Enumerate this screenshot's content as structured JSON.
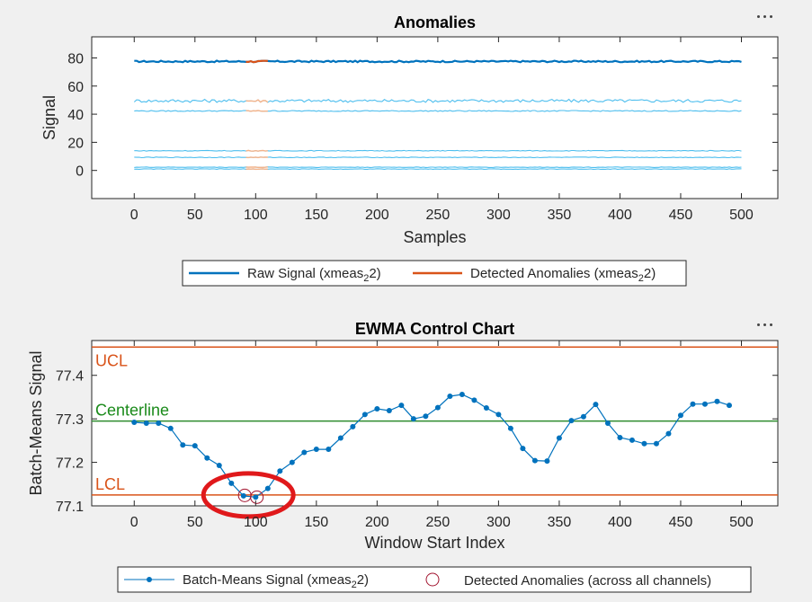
{
  "chart_data": [
    {
      "type": "line",
      "title": "Anomalies",
      "xlabel": "Samples",
      "ylabel": "Signal",
      "xlim": [
        -35,
        530
      ],
      "ylim": [
        -20,
        95
      ],
      "xticks": [
        0,
        50,
        100,
        150,
        200,
        250,
        300,
        350,
        400,
        450,
        500
      ],
      "yticks": [
        0,
        20,
        40,
        60,
        80
      ],
      "grid": false,
      "legend_position": "bottom",
      "legend": {
        "raw_prefix": "Raw Signal (xmeas",
        "raw_sub": "2",
        "raw_suffix": "2)",
        "anom_prefix": "Detected Anomalies (xmeas",
        "anom_sub": "2",
        "anom_suffix": "2)"
      },
      "series": [
        {
          "name": "Raw Signal (xmeas22)",
          "role": "main",
          "level": 77.5,
          "noise": 0.55,
          "x_range": [
            0,
            500
          ],
          "color": "#0072BD"
        },
        {
          "role": "other-channel",
          "level": 49.5,
          "noise": 1.1,
          "x_range": [
            0,
            500
          ],
          "color": "#4DBEEE"
        },
        {
          "role": "other-channel",
          "level": 42.3,
          "noise": 0.35,
          "x_range": [
            0,
            500
          ],
          "color": "#4DBEEE"
        },
        {
          "role": "other-channel",
          "level": 14.0,
          "noise": 0.25,
          "x_range": [
            0,
            500
          ],
          "color": "#4DBEEE"
        },
        {
          "role": "other-channel",
          "level": 9.3,
          "noise": 0.25,
          "x_range": [
            0,
            500
          ],
          "color": "#4DBEEE"
        },
        {
          "role": "other-channel",
          "level": 2.3,
          "noise": 0.2,
          "x_range": [
            0,
            500
          ],
          "color": "#4DBEEE"
        },
        {
          "role": "other-channel",
          "level": 1.0,
          "noise": 0.2,
          "x_range": [
            0,
            500
          ],
          "color": "#4DBEEE"
        }
      ],
      "anomaly_range": [
        91,
        111
      ],
      "anomaly_color": "#D95319",
      "anomaly_faint_color": "#F4B38A"
    },
    {
      "type": "line",
      "title": "EWMA Control Chart",
      "xlabel": "Window Start Index",
      "ylabel": "Batch-Means Signal",
      "xlim": [
        -35,
        530
      ],
      "ylim": [
        77.1,
        77.48
      ],
      "xticks": [
        0,
        50,
        100,
        150,
        200,
        250,
        300,
        350,
        400,
        450,
        500
      ],
      "yticks": [
        77.1,
        77.2,
        77.3,
        77.4
      ],
      "ytick_labels": [
        "77.1",
        "77.2",
        "77.3",
        "77.4"
      ],
      "grid": false,
      "legend_position": "bottom",
      "ucl": 77.465,
      "lcl": 77.125,
      "centerline": 77.295,
      "ucl_label": "UCL",
      "lcl_label": "LCL",
      "centerline_label": "Centerline",
      "legend": {
        "series_prefix": "Batch-Means Signal (xmeas",
        "series_sub": "2",
        "series_suffix": "2)",
        "anomalies_label": "Detected Anomalies (across all channels)"
      },
      "series": [
        {
          "name": "Batch-Means Signal (xmeas22)",
          "x": [
            0,
            10,
            20,
            30,
            40,
            50,
            60,
            70,
            80,
            90,
            100,
            110,
            120,
            130,
            140,
            150,
            160,
            170,
            180,
            190,
            200,
            210,
            220,
            230,
            240,
            250,
            260,
            270,
            280,
            290,
            300,
            310,
            320,
            330,
            340,
            350,
            360,
            370,
            380,
            390,
            400,
            410,
            420,
            430,
            440,
            450,
            460,
            470,
            480,
            490
          ],
          "values": [
            77.292,
            77.29,
            77.29,
            77.278,
            77.24,
            77.238,
            77.21,
            77.193,
            77.152,
            77.123,
            77.12,
            77.14,
            77.18,
            77.2,
            77.223,
            77.23,
            77.23,
            77.256,
            77.282,
            77.31,
            77.323,
            77.319,
            77.331,
            77.3,
            77.306,
            77.326,
            77.352,
            77.356,
            77.343,
            77.325,
            77.31,
            77.278,
            77.232,
            77.204,
            77.203,
            77.256,
            77.296,
            77.305,
            77.333,
            77.29,
            77.257,
            77.251,
            77.243,
            77.243,
            77.266,
            77.308,
            77.334,
            77.334,
            77.34,
            77.331
          ],
          "color": "#0072BD"
        }
      ],
      "anomalies": {
        "x": [
          91,
          101
        ],
        "values": [
          77.124,
          77.12
        ],
        "color": "#A2142F"
      },
      "annotation": {
        "type": "ellipse-highlight",
        "center_x": 94,
        "center_y": 77.125,
        "color": "#E0191B"
      }
    }
  ],
  "toolbar_icon": "more-options-icon"
}
